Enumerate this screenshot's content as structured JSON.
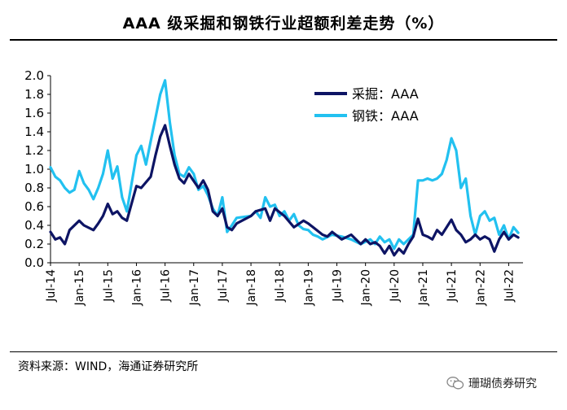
{
  "title": "AAA 级采掘和钢铁行业超额利差走势（%）",
  "source": "资料来源：WIND，海通证券研究所",
  "watermark": "珊瑚债券研究",
  "colors": {
    "series1": "#0d1464",
    "series2": "#22c1f0"
  },
  "chart_data": {
    "type": "line",
    "title": "AAA 级采掘和钢铁行业超额利差走势（%）",
    "xlabel": "",
    "ylabel": "",
    "ylim": [
      0,
      2.0
    ],
    "yticks": [
      "2.0",
      "1.8",
      "1.6",
      "1.4",
      "1.2",
      "1.0",
      "0.8",
      "0.6",
      "0.4",
      "0.2",
      "0.0"
    ],
    "xticks": [
      "Jul-14",
      "Jan-15",
      "Jul-15",
      "Jan-16",
      "Jul-16",
      "Jan-17",
      "Jul-17",
      "Jan-18",
      "Jul-18",
      "Jan-19",
      "Jul-19",
      "Jan-20",
      "Jul-20",
      "Jan-21",
      "Jul-21",
      "Jan-22",
      "Jul-22"
    ],
    "grid": false,
    "legend_position": "top-right",
    "series": [
      {
        "name": "采掘：AAA",
        "points": [
          [
            "2014-07",
            0.33
          ],
          [
            "2014-08",
            0.25
          ],
          [
            "2014-09",
            0.27
          ],
          [
            "2014-10",
            0.2
          ],
          [
            "2014-11",
            0.35
          ],
          [
            "2015-01",
            0.45
          ],
          [
            "2015-02",
            0.4
          ],
          [
            "2015-04",
            0.35
          ],
          [
            "2015-05",
            0.42
          ],
          [
            "2015-06",
            0.5
          ],
          [
            "2015-07",
            0.63
          ],
          [
            "2015-08",
            0.52
          ],
          [
            "2015-09",
            0.55
          ],
          [
            "2015-10",
            0.48
          ],
          [
            "2015-11",
            0.45
          ],
          [
            "2016-01",
            0.82
          ],
          [
            "2016-02",
            0.8
          ],
          [
            "2016-04",
            0.92
          ],
          [
            "2016-05",
            1.15
          ],
          [
            "2016-06",
            1.35
          ],
          [
            "2016-07",
            1.47
          ],
          [
            "2016-08",
            1.25
          ],
          [
            "2016-09",
            1.05
          ],
          [
            "2016-10",
            0.9
          ],
          [
            "2016-11",
            0.85
          ],
          [
            "2016-12",
            0.95
          ],
          [
            "2017-02",
            0.8
          ],
          [
            "2017-03",
            0.88
          ],
          [
            "2017-04",
            0.78
          ],
          [
            "2017-05",
            0.55
          ],
          [
            "2017-06",
            0.5
          ],
          [
            "2017-07",
            0.58
          ],
          [
            "2017-08",
            0.38
          ],
          [
            "2017-09",
            0.35
          ],
          [
            "2017-10",
            0.42
          ],
          [
            "2018-01",
            0.5
          ],
          [
            "2018-02",
            0.55
          ],
          [
            "2018-04",
            0.58
          ],
          [
            "2018-05",
            0.45
          ],
          [
            "2018-06",
            0.58
          ],
          [
            "2018-08",
            0.5
          ],
          [
            "2018-10",
            0.38
          ],
          [
            "2018-12",
            0.45
          ],
          [
            "2019-01",
            0.42
          ],
          [
            "2019-02",
            0.38
          ],
          [
            "2019-04",
            0.3
          ],
          [
            "2019-05",
            0.28
          ],
          [
            "2019-06",
            0.33
          ],
          [
            "2019-08",
            0.25
          ],
          [
            "2019-10",
            0.3
          ],
          [
            "2019-12",
            0.2
          ],
          [
            "2020-01",
            0.25
          ],
          [
            "2020-02",
            0.2
          ],
          [
            "2020-03",
            0.22
          ],
          [
            "2020-04",
            0.18
          ],
          [
            "2020-05",
            0.1
          ],
          [
            "2020-06",
            0.18
          ],
          [
            "2020-07",
            0.08
          ],
          [
            "2020-08",
            0.15
          ],
          [
            "2020-09",
            0.1
          ],
          [
            "2020-10",
            0.2
          ],
          [
            "2020-11",
            0.28
          ],
          [
            "2020-12",
            0.47
          ],
          [
            "2021-01",
            0.3
          ],
          [
            "2021-02",
            0.28
          ],
          [
            "2021-03",
            0.25
          ],
          [
            "2021-04",
            0.35
          ],
          [
            "2021-05",
            0.3
          ],
          [
            "2021-06",
            0.38
          ],
          [
            "2021-07",
            0.46
          ],
          [
            "2021-08",
            0.35
          ],
          [
            "2021-09",
            0.3
          ],
          [
            "2021-10",
            0.22
          ],
          [
            "2021-11",
            0.25
          ],
          [
            "2021-12",
            0.3
          ],
          [
            "2022-01",
            0.25
          ],
          [
            "2022-02",
            0.28
          ],
          [
            "2022-03",
            0.25
          ],
          [
            "2022-04",
            0.12
          ],
          [
            "2022-05",
            0.25
          ],
          [
            "2022-06",
            0.33
          ],
          [
            "2022-07",
            0.25
          ],
          [
            "2022-08",
            0.3
          ],
          [
            "2022-09",
            0.27
          ]
        ]
      },
      {
        "name": "钢铁：AAA",
        "points": [
          [
            "2014-07",
            1.02
          ],
          [
            "2014-08",
            0.92
          ],
          [
            "2014-09",
            0.88
          ],
          [
            "2014-10",
            0.8
          ],
          [
            "2014-11",
            0.75
          ],
          [
            "2014-12",
            0.78
          ],
          [
            "2015-01",
            0.98
          ],
          [
            "2015-02",
            0.85
          ],
          [
            "2015-03",
            0.78
          ],
          [
            "2015-04",
            0.68
          ],
          [
            "2015-05",
            0.8
          ],
          [
            "2015-06",
            0.95
          ],
          [
            "2015-07",
            1.2
          ],
          [
            "2015-08",
            0.9
          ],
          [
            "2015-09",
            1.03
          ],
          [
            "2015-10",
            0.7
          ],
          [
            "2015-11",
            0.55
          ],
          [
            "2015-12",
            0.85
          ],
          [
            "2016-01",
            1.15
          ],
          [
            "2016-02",
            1.25
          ],
          [
            "2016-03",
            1.05
          ],
          [
            "2016-04",
            1.3
          ],
          [
            "2016-05",
            1.55
          ],
          [
            "2016-06",
            1.8
          ],
          [
            "2016-07",
            1.95
          ],
          [
            "2016-08",
            1.5
          ],
          [
            "2016-09",
            1.15
          ],
          [
            "2016-10",
            0.95
          ],
          [
            "2016-11",
            0.92
          ],
          [
            "2016-12",
            1.02
          ],
          [
            "2017-01",
            0.95
          ],
          [
            "2017-02",
            0.78
          ],
          [
            "2017-03",
            0.82
          ],
          [
            "2017-04",
            0.72
          ],
          [
            "2017-05",
            0.58
          ],
          [
            "2017-06",
            0.5
          ],
          [
            "2017-07",
            0.7
          ],
          [
            "2017-08",
            0.33
          ],
          [
            "2017-09",
            0.4
          ],
          [
            "2017-10",
            0.48
          ],
          [
            "2018-01",
            0.5
          ],
          [
            "2018-02",
            0.55
          ],
          [
            "2018-03",
            0.48
          ],
          [
            "2018-04",
            0.7
          ],
          [
            "2018-05",
            0.6
          ],
          [
            "2018-06",
            0.62
          ],
          [
            "2018-07",
            0.5
          ],
          [
            "2018-08",
            0.55
          ],
          [
            "2018-09",
            0.45
          ],
          [
            "2018-10",
            0.52
          ],
          [
            "2018-11",
            0.4
          ],
          [
            "2018-12",
            0.36
          ],
          [
            "2019-01",
            0.35
          ],
          [
            "2019-02",
            0.3
          ],
          [
            "2019-03",
            0.28
          ],
          [
            "2019-04",
            0.25
          ],
          [
            "2019-06",
            0.3
          ],
          [
            "2019-08",
            0.28
          ],
          [
            "2019-10",
            0.25
          ],
          [
            "2019-12",
            0.2
          ],
          [
            "2020-02",
            0.25
          ],
          [
            "2020-03",
            0.2
          ],
          [
            "2020-04",
            0.28
          ],
          [
            "2020-05",
            0.22
          ],
          [
            "2020-06",
            0.25
          ],
          [
            "2020-07",
            0.15
          ],
          [
            "2020-08",
            0.25
          ],
          [
            "2020-09",
            0.2
          ],
          [
            "2020-10",
            0.25
          ],
          [
            "2020-11",
            0.3
          ],
          [
            "2020-12",
            0.88
          ],
          [
            "2021-01",
            0.88
          ],
          [
            "2021-02",
            0.9
          ],
          [
            "2021-03",
            0.88
          ],
          [
            "2021-04",
            0.9
          ],
          [
            "2021-05",
            0.95
          ],
          [
            "2021-06",
            1.1
          ],
          [
            "2021-07",
            1.33
          ],
          [
            "2021-08",
            1.2
          ],
          [
            "2021-09",
            0.8
          ],
          [
            "2021-10",
            0.9
          ],
          [
            "2021-11",
            0.5
          ],
          [
            "2021-12",
            0.3
          ],
          [
            "2022-01",
            0.5
          ],
          [
            "2022-02",
            0.55
          ],
          [
            "2022-03",
            0.45
          ],
          [
            "2022-04",
            0.48
          ],
          [
            "2022-05",
            0.3
          ],
          [
            "2022-06",
            0.4
          ],
          [
            "2022-07",
            0.25
          ],
          [
            "2022-08",
            0.38
          ],
          [
            "2022-09",
            0.32
          ]
        ]
      }
    ]
  }
}
